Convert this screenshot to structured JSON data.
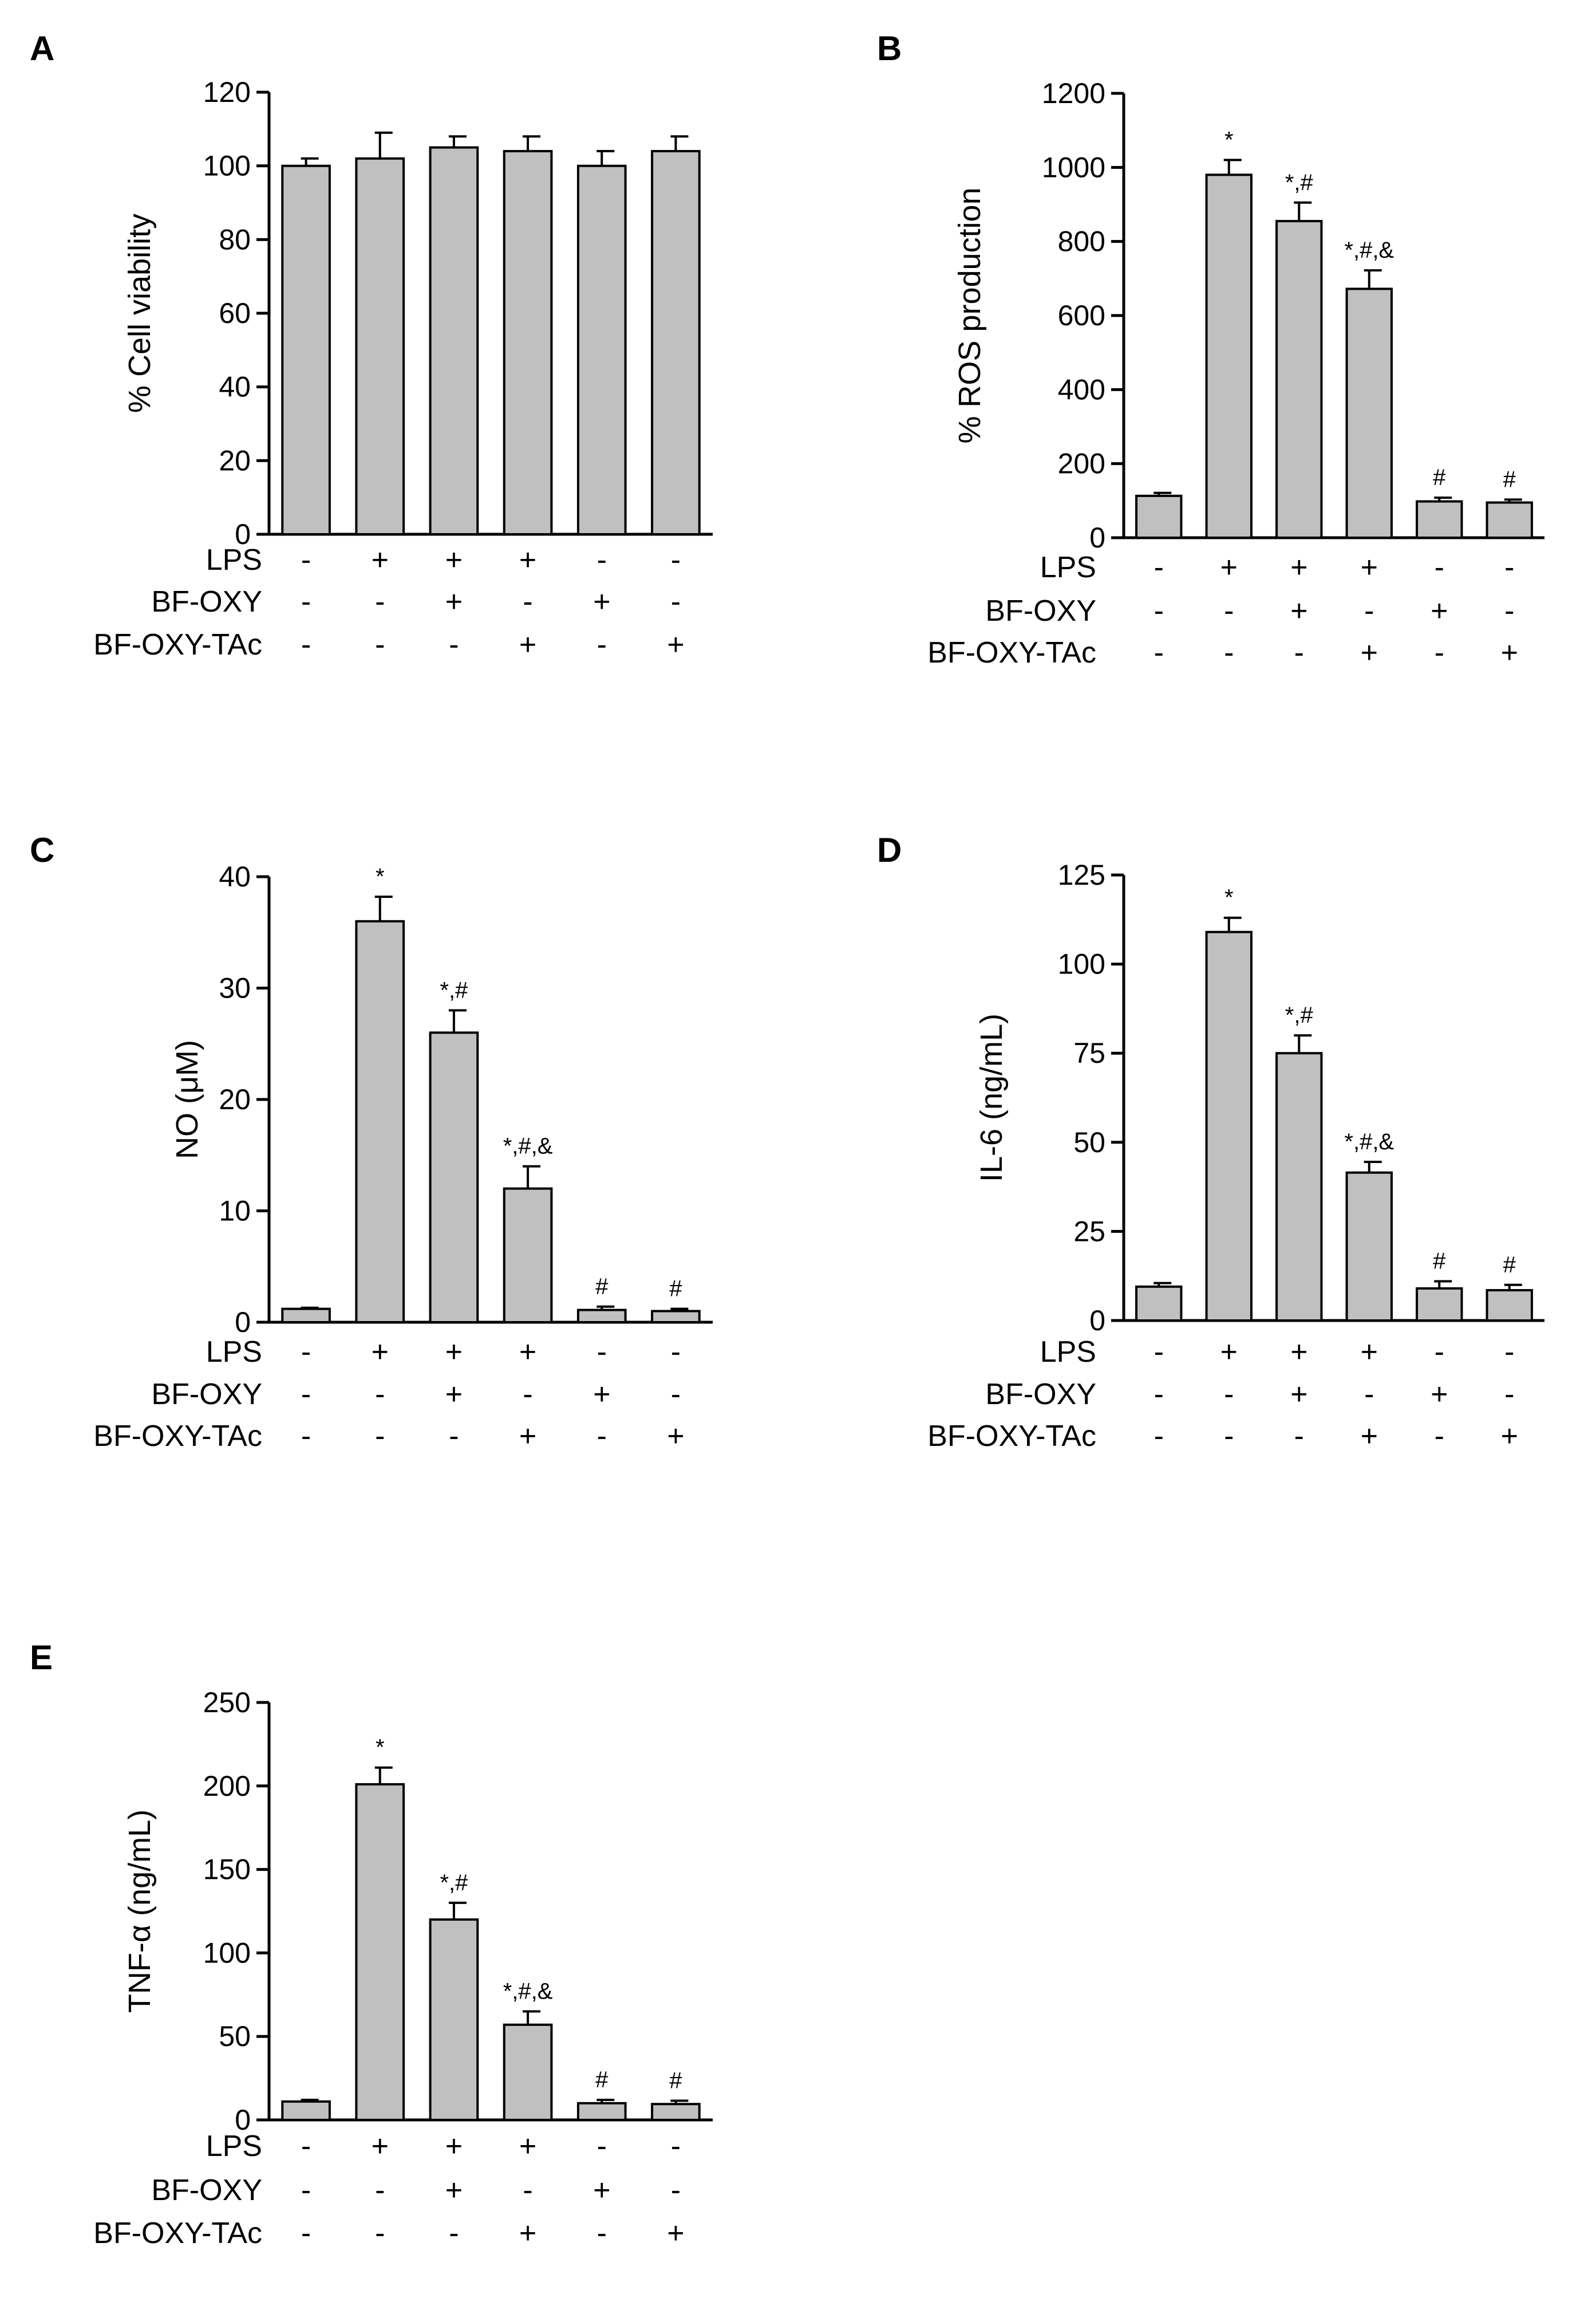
{
  "figure": {
    "treatment_rows": [
      "LPS",
      "BF-OXY",
      "BF-OXY-TAc"
    ],
    "treatment_signs": [
      [
        "-",
        "+",
        "+",
        "+",
        "-",
        "-"
      ],
      [
        "-",
        "-",
        "+",
        "-",
        "+",
        "-"
      ],
      [
        "-",
        "-",
        "-",
        "+",
        "-",
        "+"
      ]
    ],
    "colors": {
      "bar_fill": "#c0c0c0",
      "stroke": "#000000"
    }
  },
  "chart_data": [
    {
      "panel": "A",
      "type": "bar",
      "ylabel": "% Cell viability",
      "ylim": [
        0,
        120
      ],
      "yticks": [
        "0",
        "20",
        "40",
        "60",
        "80",
        "100",
        "120"
      ],
      "values": [
        100,
        102,
        105,
        104,
        100,
        104
      ],
      "errors": [
        2,
        7,
        3,
        4,
        4,
        4
      ],
      "significance": [
        "",
        "",
        "",
        "",
        "",
        ""
      ]
    },
    {
      "panel": "B",
      "type": "bar",
      "ylabel": "% ROS production",
      "ylim": [
        0,
        1200
      ],
      "yticks": [
        "0",
        "200",
        "400",
        "600",
        "800",
        "1000",
        "1200"
      ],
      "values": [
        113,
        980,
        855,
        672,
        98,
        95
      ],
      "errors": [
        8,
        40,
        50,
        50,
        10,
        8
      ],
      "significance": [
        "",
        "*",
        "*,#",
        "*,#,&",
        "#",
        "#"
      ]
    },
    {
      "panel": "C",
      "type": "bar",
      "ylabel": "NO (μM)",
      "ylim": [
        0,
        40
      ],
      "yticks": [
        "0",
        "10",
        "20",
        "30",
        "40"
      ],
      "values": [
        1.2,
        36,
        26,
        12,
        1.1,
        1.0
      ],
      "errors": [
        0.1,
        2.2,
        2.0,
        2.0,
        0.3,
        0.2
      ],
      "significance": [
        "",
        "*",
        "*,#",
        "*,#,&",
        "#",
        "#"
      ]
    },
    {
      "panel": "D",
      "type": "bar",
      "ylabel": "IL-6 (ng/mL)",
      "ylim": [
        0,
        125
      ],
      "yticks": [
        "0",
        "25",
        "50",
        "75",
        "100",
        "125"
      ],
      "values": [
        9.5,
        109,
        75,
        41.5,
        9,
        8.5
      ],
      "errors": [
        1,
        4,
        5,
        3,
        2,
        1.5
      ],
      "significance": [
        "",
        "*",
        "*,#",
        "*,#,&",
        "#",
        "#"
      ]
    },
    {
      "panel": "E",
      "type": "bar",
      "ylabel": "TNF-α (ng/mL)",
      "ylim": [
        0,
        250
      ],
      "yticks": [
        "0",
        "50",
        "100",
        "150",
        "200",
        "250"
      ],
      "values": [
        11,
        201,
        120,
        57,
        10,
        9.5
      ],
      "errors": [
        1,
        10,
        10,
        8,
        2,
        2
      ],
      "significance": [
        "",
        "*",
        "*,#",
        "*,#,&",
        "#",
        "#"
      ]
    }
  ]
}
